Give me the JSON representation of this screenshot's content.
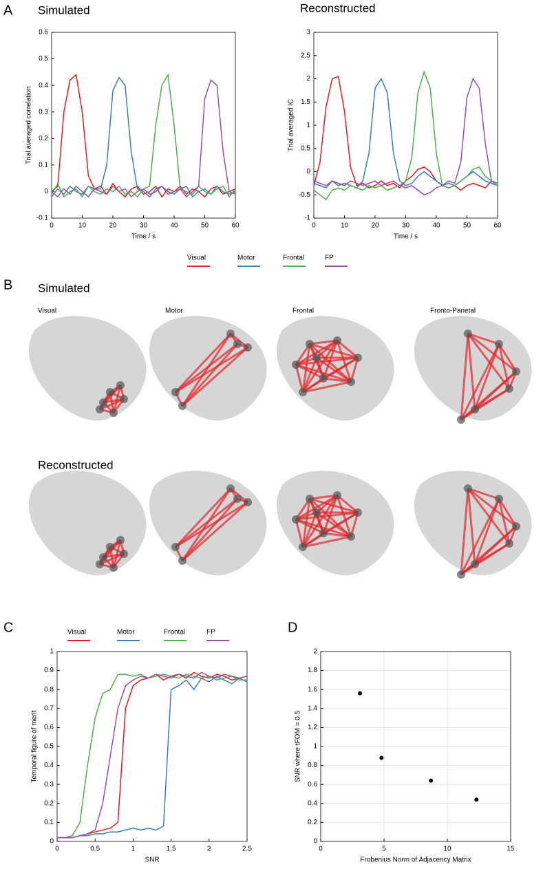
{
  "chart_data": [
    {
      "type": "line",
      "panel": "A",
      "title": "Simulated",
      "xlabel": "Time / s",
      "ylabel": "Trial averaged correlation",
      "xlim": [
        0,
        60
      ],
      "ylim": [
        -0.1,
        0.6
      ],
      "xticks": [
        0,
        10,
        20,
        30,
        40,
        50,
        60
      ],
      "yticks": [
        -0.1,
        0,
        0.1,
        0.2,
        0.3,
        0.4,
        0.5,
        0.6
      ],
      "x": [
        0,
        2,
        4,
        6,
        8,
        10,
        12,
        14,
        16,
        18,
        20,
        22,
        24,
        26,
        28,
        30,
        32,
        34,
        36,
        38,
        40,
        42,
        44,
        46,
        48,
        50,
        52,
        54,
        56,
        58,
        60
      ],
      "series": [
        {
          "name": "Visual",
          "color": "#e41a1c",
          "values": [
            0,
            0.02,
            0.3,
            0.42,
            0.44,
            0.3,
            0.06,
            0.01,
            0.02,
            -0.01,
            0.03,
            0.0,
            -0.02,
            0.01,
            0.02,
            -0.01,
            0.0,
            0.02,
            -0.02,
            0.01,
            0.0,
            0.02,
            -0.01,
            0.01,
            0.0,
            -0.02,
            0.01,
            0.02,
            -0.01,
            0.0,
            0.01
          ]
        },
        {
          "name": "Motor",
          "color": "#377eb8",
          "values": [
            -0.02,
            0.01,
            -0.01,
            0.02,
            0.0,
            -0.01,
            0.02,
            0.01,
            0.01,
            0.1,
            0.38,
            0.43,
            0.4,
            0.15,
            0.01,
            0.0,
            -0.02,
            0.01,
            0.02,
            0.0,
            -0.01,
            0.01,
            0.02,
            -0.02,
            0.0,
            0.01,
            -0.01,
            0.02,
            0.0,
            -0.01,
            0.0
          ]
        },
        {
          "name": "Frontal",
          "color": "#4daf4a",
          "values": [
            -0.01,
            0.03,
            -0.02,
            0.0,
            0.01,
            -0.02,
            0.02,
            0.0,
            -0.01,
            0.01,
            0.0,
            0.02,
            -0.01,
            0.0,
            -0.02,
            0.01,
            0.02,
            0.25,
            0.4,
            0.44,
            0.25,
            0.01,
            0.0,
            -0.01,
            0.02,
            0.0,
            -0.01,
            0.01,
            0.02,
            -0.02,
            0.01
          ]
        },
        {
          "name": "FP",
          "color": "#984ea3",
          "values": [
            0.0,
            -0.02,
            0.01,
            -0.01,
            0.02,
            0.0,
            -0.02,
            0.01,
            0.0,
            -0.01,
            0.02,
            0.0,
            0.01,
            -0.02,
            0.0,
            0.01,
            -0.01,
            0.0,
            0.02,
            -0.01,
            0.0,
            0.01,
            -0.02,
            0.0,
            0.02,
            0.35,
            0.42,
            0.4,
            0.15,
            0.0,
            -0.01
          ]
        }
      ]
    },
    {
      "type": "line",
      "title": "Reconstructed",
      "xlabel": "Time / s",
      "ylabel": "Trial averaged IC",
      "xlim": [
        0,
        60
      ],
      "ylim": [
        -1,
        3
      ],
      "xticks": [
        0,
        10,
        20,
        30,
        40,
        50,
        60
      ],
      "yticks": [
        -1,
        -0.5,
        0,
        0.5,
        1,
        1.5,
        2,
        2.5,
        3
      ],
      "x": [
        0,
        2,
        4,
        6,
        8,
        10,
        12,
        14,
        16,
        18,
        20,
        22,
        24,
        26,
        28,
        30,
        32,
        34,
        36,
        38,
        40,
        42,
        44,
        46,
        48,
        50,
        52,
        54,
        56,
        58,
        60
      ],
      "series": [
        {
          "color": "#e41a1c",
          "values": [
            -0.3,
            0.2,
            1.4,
            2.0,
            2.05,
            1.3,
            0.1,
            -0.3,
            -0.25,
            -0.35,
            -0.3,
            -0.2,
            -0.3,
            -0.25,
            -0.35,
            -0.2,
            -0.1,
            0.05,
            0.1,
            0.0,
            -0.2,
            -0.3,
            -0.35,
            -0.3,
            -0.4,
            -0.3,
            -0.25,
            -0.3,
            -0.35,
            -0.2,
            -0.3
          ]
        },
        {
          "color": "#377eb8",
          "values": [
            -0.25,
            -0.3,
            -0.35,
            -0.2,
            -0.3,
            -0.25,
            -0.3,
            -0.35,
            -0.2,
            0.4,
            1.8,
            2.0,
            1.7,
            0.4,
            -0.2,
            -0.3,
            -0.25,
            -0.1,
            0.0,
            -0.1,
            -0.2,
            -0.3,
            -0.25,
            -0.3,
            -0.2,
            -0.1,
            0.0,
            -0.1,
            -0.2,
            -0.25,
            -0.3
          ]
        },
        {
          "color": "#4daf4a",
          "values": [
            -0.4,
            -0.5,
            -0.6,
            -0.4,
            -0.35,
            -0.4,
            -0.3,
            -0.35,
            -0.4,
            -0.3,
            -0.35,
            -0.3,
            -0.4,
            -0.35,
            -0.3,
            -0.2,
            0.3,
            1.7,
            2.15,
            1.8,
            0.4,
            -0.3,
            -0.35,
            -0.3,
            -0.2,
            -0.1,
            0.05,
            0.1,
            -0.1,
            -0.2,
            -0.3
          ]
        },
        {
          "color": "#984ea3",
          "values": [
            -0.2,
            -0.25,
            -0.3,
            -0.2,
            -0.25,
            -0.3,
            -0.2,
            -0.25,
            -0.3,
            -0.25,
            -0.2,
            -0.3,
            -0.25,
            -0.2,
            -0.3,
            -0.35,
            -0.3,
            -0.4,
            -0.5,
            -0.45,
            -0.35,
            -0.3,
            -0.2,
            -0.25,
            0.2,
            1.6,
            2.0,
            1.8,
            0.6,
            -0.2,
            -0.25
          ]
        }
      ]
    },
    {
      "type": "line",
      "panel": "C",
      "xlabel": "SNR",
      "ylabel": "Temporal figure of merit",
      "xlim": [
        0,
        2.5
      ],
      "ylim": [
        0,
        1
      ],
      "xticks": [
        0,
        0.5,
        1,
        1.5,
        2,
        2.5
      ],
      "yticks": [
        0,
        0.1,
        0.2,
        0.3,
        0.4,
        0.5,
        0.6,
        0.7,
        0.8,
        0.9,
        1
      ],
      "x": [
        0,
        0.1,
        0.2,
        0.3,
        0.4,
        0.5,
        0.6,
        0.7,
        0.8,
        0.9,
        1.0,
        1.1,
        1.2,
        1.3,
        1.4,
        1.5,
        1.6,
        1.7,
        1.8,
        1.9,
        2.0,
        2.1,
        2.2,
        2.3,
        2.4,
        2.5
      ],
      "series": [
        {
          "name": "Visual",
          "color": "#e41a1c",
          "values": [
            0.02,
            0.02,
            0.02,
            0.03,
            0.04,
            0.05,
            0.06,
            0.07,
            0.1,
            0.7,
            0.82,
            0.85,
            0.86,
            0.88,
            0.85,
            0.87,
            0.88,
            0.86,
            0.89,
            0.87,
            0.86,
            0.88,
            0.87,
            0.85,
            0.86,
            0.87
          ]
        },
        {
          "name": "Motor",
          "color": "#377eb8",
          "values": [
            0.02,
            0.02,
            0.02,
            0.03,
            0.03,
            0.04,
            0.04,
            0.05,
            0.05,
            0.06,
            0.07,
            0.06,
            0.07,
            0.06,
            0.08,
            0.8,
            0.82,
            0.85,
            0.8,
            0.86,
            0.84,
            0.87,
            0.85,
            0.83,
            0.86,
            0.84
          ]
        },
        {
          "name": "Frontal",
          "color": "#4daf4a",
          "values": [
            0.02,
            0.02,
            0.03,
            0.1,
            0.4,
            0.65,
            0.78,
            0.8,
            0.88,
            0.88,
            0.87,
            0.88,
            0.86,
            0.87,
            0.88,
            0.87,
            0.86,
            0.88,
            0.87,
            0.86,
            0.87,
            0.85,
            0.86,
            0.87,
            0.85,
            0.85
          ]
        },
        {
          "name": "FP",
          "color": "#984ea3",
          "values": [
            0.02,
            0.02,
            0.02,
            0.03,
            0.04,
            0.06,
            0.2,
            0.45,
            0.7,
            0.82,
            0.85,
            0.87,
            0.86,
            0.88,
            0.87,
            0.86,
            0.88,
            0.87,
            0.86,
            0.89,
            0.87,
            0.86,
            0.88,
            0.87,
            0.86,
            0.87
          ]
        }
      ]
    },
    {
      "type": "scatter",
      "panel": "D",
      "xlabel": "Frobenius Norm of Adjacency Matrix",
      "ylabel": "SNR where tFOM = 0.5",
      "xlim": [
        0,
        15
      ],
      "ylim": [
        0,
        2
      ],
      "xticks": [
        0,
        5,
        10,
        15
      ],
      "yticks": [
        0,
        0.2,
        0.4,
        0.6,
        0.8,
        1,
        1.2,
        1.4,
        1.6,
        1.8,
        2
      ],
      "grid": true,
      "color": "#000000",
      "x": [
        3.1,
        4.8,
        8.7,
        12.3
      ],
      "values": [
        1.56,
        0.88,
        0.64,
        0.44
      ]
    }
  ],
  "panel_b": {
    "label": "B",
    "rows": [
      "Simulated",
      "Reconstructed"
    ],
    "columns": [
      "Visual",
      "Motor",
      "Frontal",
      "Fronto-Parietal"
    ]
  }
}
